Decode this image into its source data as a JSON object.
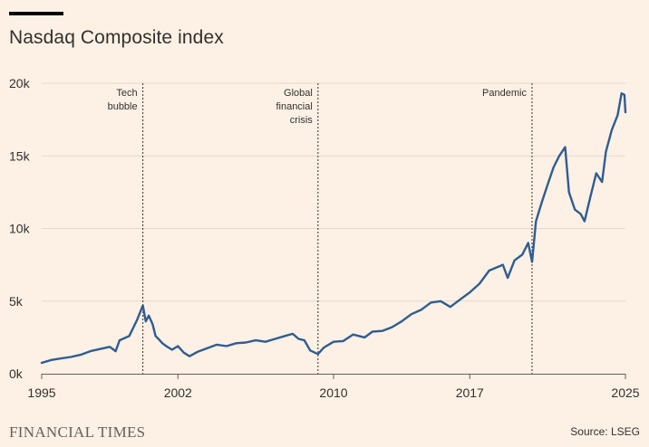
{
  "title": "Nasdaq Composite index",
  "brand": "FINANCIAL TIMES",
  "source": "Source: LSEG",
  "colors": {
    "background": "#fdf1e5",
    "line": "#2f5c93",
    "grid": "#e5d9cd",
    "text": "#33302e"
  },
  "chart_data": {
    "type": "line",
    "title": "Nasdaq Composite index",
    "xlim": [
      1995,
      2025
    ],
    "ylim": [
      0,
      20000
    ],
    "x_ticks": [
      1995,
      2002,
      2010,
      2017,
      2025
    ],
    "x_tick_labels": [
      "1995",
      "2002",
      "2010",
      "2017",
      "2025"
    ],
    "y_ticks": [
      0,
      5000,
      10000,
      15000,
      20000
    ],
    "y_tick_labels": [
      "0k",
      "5k",
      "10k",
      "15k",
      "20k"
    ],
    "grid": "horizontal",
    "annotations": [
      {
        "x": 2000.2,
        "lines": [
          "Tech",
          "bubble"
        ]
      },
      {
        "x": 2009.2,
        "lines": [
          "Global",
          "financial",
          "crisis"
        ]
      },
      {
        "x": 2020.2,
        "lines": [
          "Pandemic"
        ]
      }
    ],
    "series": [
      {
        "x": [
          1995.0,
          1995.5,
          1996.0,
          1996.5,
          1997.0,
          1997.5,
          1998.0,
          1998.5,
          1998.8,
          1999.0,
          1999.5,
          1999.9,
          2000.2,
          2000.35,
          2000.5,
          2000.7,
          2000.85,
          2001.0,
          2001.2,
          2001.4,
          2001.7,
          2002.0,
          2002.3,
          2002.6,
          2002.8,
          2003.0,
          2003.5,
          2004.0,
          2004.5,
          2005.0,
          2005.5,
          2006.0,
          2006.5,
          2007.0,
          2007.5,
          2007.9,
          2008.2,
          2008.5,
          2008.8,
          2009.2,
          2009.5,
          2010.0,
          2010.5,
          2011.0,
          2011.6,
          2012.0,
          2012.5,
          2013.0,
          2013.5,
          2014.0,
          2014.5,
          2015.0,
          2015.5,
          2016.0,
          2016.5,
          2017.0,
          2017.5,
          2018.0,
          2018.7,
          2018.95,
          2019.3,
          2019.7,
          2020.0,
          2020.2,
          2020.4,
          2020.7,
          2021.0,
          2021.3,
          2021.6,
          2021.9,
          2022.1,
          2022.4,
          2022.7,
          2022.9,
          2023.2,
          2023.5,
          2023.8,
          2024.0,
          2024.3,
          2024.6,
          2024.8,
          2024.95,
          2025.0
        ],
        "y": [
          750,
          950,
          1050,
          1150,
          1300,
          1550,
          1700,
          1850,
          1550,
          2300,
          2600,
          3700,
          4700,
          3600,
          4000,
          3400,
          2600,
          2400,
          2100,
          1900,
          1650,
          1900,
          1450,
          1200,
          1350,
          1500,
          1750,
          2000,
          1900,
          2100,
          2150,
          2300,
          2200,
          2400,
          2600,
          2750,
          2400,
          2300,
          1600,
          1350,
          1800,
          2200,
          2250,
          2700,
          2500,
          2900,
          2950,
          3200,
          3600,
          4100,
          4400,
          4900,
          5000,
          4600,
          5100,
          5600,
          6200,
          7100,
          7500,
          6600,
          7800,
          8200,
          9000,
          7700,
          10500,
          11800,
          13000,
          14200,
          15000,
          15600,
          12500,
          11300,
          11000,
          10500,
          12200,
          13800,
          13200,
          15300,
          16800,
          17800,
          19300,
          19200,
          18000
        ]
      }
    ]
  }
}
